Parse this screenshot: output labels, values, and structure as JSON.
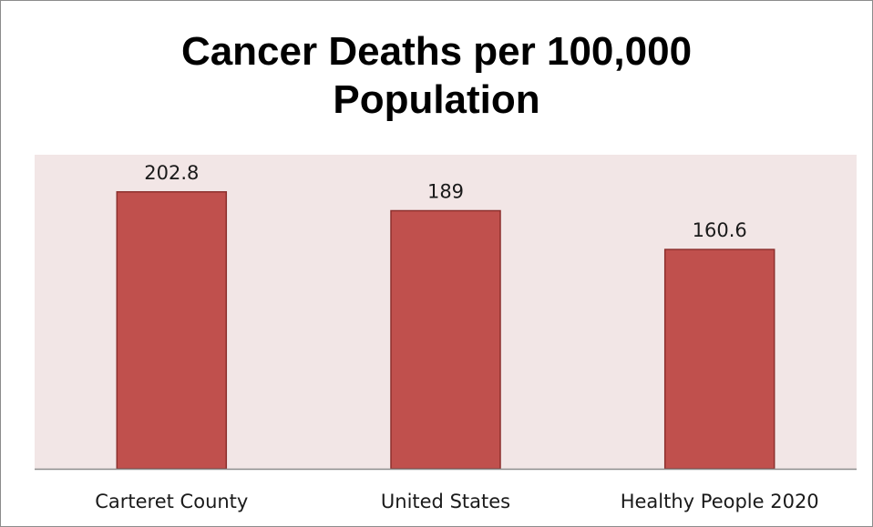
{
  "chart_data": {
    "type": "bar",
    "title": "Cancer Deaths per 100,000 Population",
    "categories": [
      "Carteret County",
      "United States",
      "Healthy People 2020"
    ],
    "values": [
      202.8,
      189,
      160.6
    ],
    "value_labels": [
      "202.8",
      "189",
      "160.6"
    ],
    "xlabel": "",
    "ylabel": "",
    "ylim": [
      0,
      230
    ],
    "grid": false,
    "legend": "none",
    "bar_color": "#c0504d",
    "bar_edge_color": "#8c2f2d",
    "plot_background": "#f2e6e6"
  }
}
